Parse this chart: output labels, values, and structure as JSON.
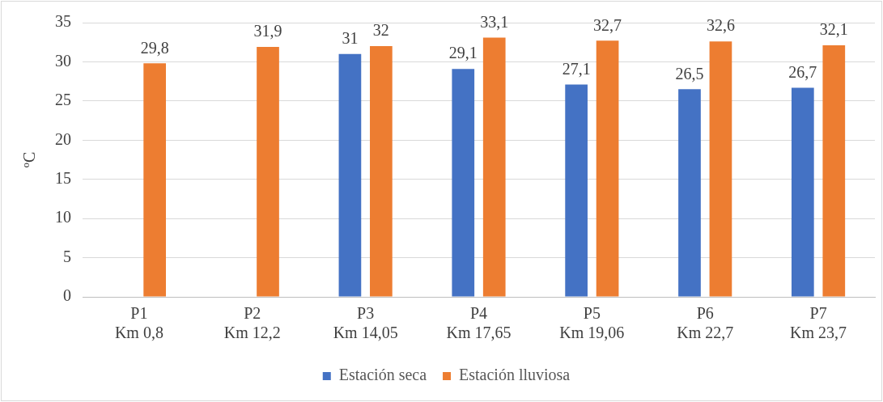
{
  "chart_data": {
    "type": "bar",
    "ylabel": "ºC",
    "categories": [
      "P1\nKm 0,8",
      "P2\nKm 12,2",
      "P3\nKm 14,05",
      "P4\nKm 17,65",
      "P5\nKm 19,06",
      "P6\nKm 22,7",
      "P7\nKm 23,7"
    ],
    "series": [
      {
        "name": "Estación seca",
        "color": "#4472c4",
        "values": [
          null,
          null,
          31,
          29.1,
          27.1,
          26.5,
          26.7
        ],
        "value_labels": [
          null,
          null,
          "31",
          "29,1",
          "27,1",
          "26,5",
          "26,7"
        ]
      },
      {
        "name": "Estación lluviosa",
        "color": "#ed7d31",
        "values": [
          29.8,
          31.9,
          32,
          33.1,
          32.7,
          32.6,
          32.1
        ],
        "value_labels": [
          "29,8",
          "31,9",
          "32",
          "33,1",
          "32,7",
          "32,6",
          "32,1"
        ]
      }
    ],
    "ylim": [
      0,
      35
    ],
    "yticks": [
      0,
      5,
      10,
      15,
      20,
      25,
      30,
      35
    ],
    "grid": "y",
    "legend": "bottom"
  }
}
